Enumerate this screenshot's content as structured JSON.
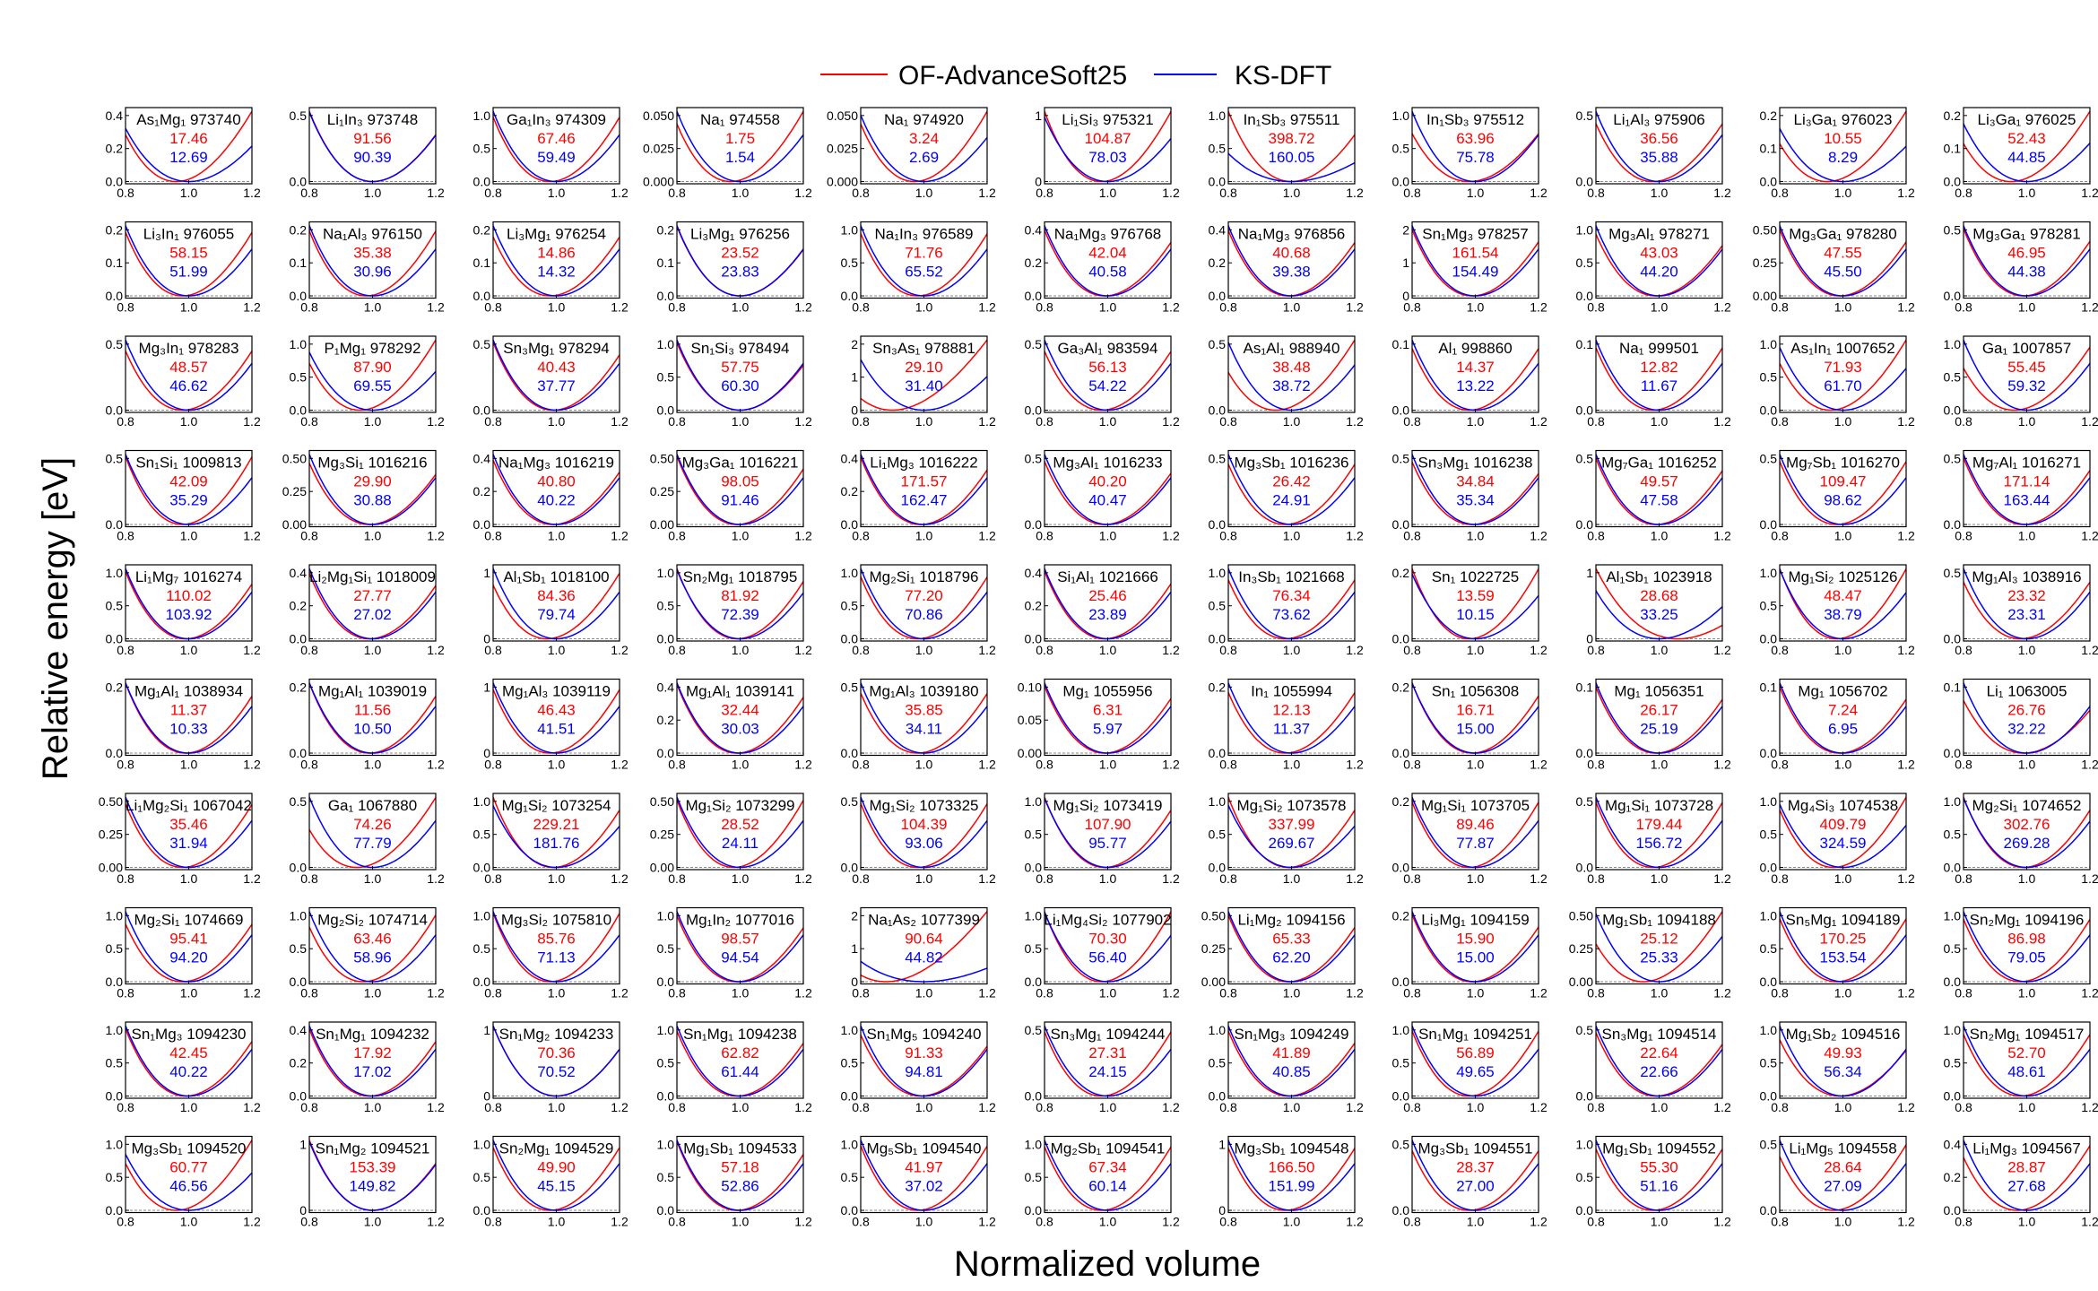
{
  "chart_data": {
    "type": "line",
    "layout": "grid 10 rows x 11 columns of small multiples",
    "xlabel": "Normalized volume",
    "ylabel": "Relative energy [eV]",
    "xlim": [
      0.8,
      1.2
    ],
    "xticks": [
      "0.8",
      "1.0",
      "1.2"
    ],
    "legend": {
      "placement": "top-center",
      "entries": [
        {
          "name": "OF-AdvanceSoft25",
          "color": "#ff0000"
        },
        {
          "name": "KS-DFT",
          "color": "#0000ff"
        }
      ]
    },
    "panel_fields": [
      "title",
      "OF-AdvanceSoft25 value",
      "KS-DFT value",
      "y tick labels",
      "OF min volume (optional)",
      "KS min volume (optional)"
    ],
    "panels": [
      [
        "As₁Mg₁ 973740",
        "17.46",
        "12.69",
        [
          "0.0",
          "0.2",
          "0.4"
        ],
        0.96
      ],
      [
        "Li₁In₃ 973748",
        "91.56",
        "90.39",
        [
          "0.0",
          "0.5"
        ],
        1.0
      ],
      [
        "Ga₁In₃ 974309",
        "67.46",
        "59.49",
        [
          "0.0",
          "0.5",
          "1.0"
        ]
      ],
      [
        "Na₁ 974558",
        "1.75",
        "1.54",
        [
          "0.000",
          "0.025",
          "0.050"
        ],
        0.97
      ],
      [
        "Na₁ 974920",
        "3.24",
        "2.69",
        [
          "0.000",
          "0.025",
          "0.050"
        ],
        0.97
      ],
      [
        "Li₁Si₃ 975321",
        "104.87",
        "78.03",
        [
          "0",
          "1"
        ]
      ],
      [
        "In₁Sb₃ 975511",
        "398.72",
        "160.05",
        [
          "0.0",
          "0.5",
          "1.0"
        ],
        1.0
      ],
      [
        "In₁Sb₃ 975512",
        "63.96",
        "75.78",
        [
          "0.0",
          "0.5",
          "1.0"
        ]
      ],
      [
        "Li₁Al₃ 975906",
        "36.56",
        "35.88",
        [
          "0.0",
          "0.5"
        ]
      ],
      [
        "Li₃Ga₁ 976023",
        "10.55",
        "8.29",
        [
          "0.0",
          "0.1",
          "0.2"
        ],
        0.95
      ],
      [
        "Li₃Ga₁ 976025",
        "52.43",
        "44.85",
        [
          "0.0",
          "0.1",
          "0.2"
        ],
        0.95
      ],
      [
        "Li₃In₁ 976055",
        "58.15",
        "51.99",
        [
          "0.0",
          "0.1",
          "0.2"
        ]
      ],
      [
        "Na₁Al₃ 976150",
        "35.38",
        "30.96",
        [
          "0.0",
          "0.1",
          "0.2"
        ]
      ],
      [
        "Li₃Mg₁ 976254",
        "14.86",
        "14.32",
        [
          "0.0",
          "0.1",
          "0.2"
        ]
      ],
      [
        "Li₃Mg₁ 976256",
        "23.52",
        "23.83",
        [
          "0.0",
          "0.1",
          "0.2"
        ],
        1.0
      ],
      [
        "Na₁In₃ 976589",
        "71.76",
        "65.52",
        [
          "0.0",
          "0.5",
          "1.0"
        ]
      ],
      [
        "Na₁Mg₃ 976768",
        "42.04",
        "40.58",
        [
          "0.0",
          "0.2",
          "0.4"
        ],
        0.99
      ],
      [
        "Na₁Mg₃ 976856",
        "40.68",
        "39.38",
        [
          "0.0",
          "0.2",
          "0.4"
        ],
        0.99
      ],
      [
        "Sn₁Mg₃ 978257",
        "161.54",
        "154.49",
        [
          "0",
          "1",
          "2"
        ],
        0.99
      ],
      [
        "Mg₃Al₁ 978271",
        "43.03",
        "44.20",
        [
          "0.0",
          "0.5",
          "1.0"
        ],
        0.99
      ],
      [
        "Mg₃Ga₁ 978280",
        "47.55",
        "45.50",
        [
          "0.00",
          "0.25",
          "0.50"
        ],
        0.99
      ],
      [
        "Mg₃Ga₁ 978281",
        "46.95",
        "44.38",
        [
          "0.0",
          "0.5"
        ],
        0.99
      ],
      [
        "Mg₃In₁ 978283",
        "48.57",
        "46.62",
        [
          "0.0",
          "0.5"
        ]
      ],
      [
        "P₁Mg₁ 978292",
        "87.90",
        "69.55",
        [
          "0.0",
          "0.5",
          "1.0"
        ],
        0.96
      ],
      [
        "Sn₃Mg₁ 978294",
        "40.43",
        "37.77",
        [
          "0.0",
          "0.5"
        ],
        0.99
      ],
      [
        "Sn₁Si₃ 978494",
        "57.75",
        "60.30",
        [
          "0.0",
          "0.5",
          "1.0"
        ],
        1.0
      ],
      [
        "Sn₃As₁ 978881",
        "29.10",
        "31.40",
        [
          "0",
          "1",
          "2"
        ],
        0.9,
        1.0
      ],
      [
        "Ga₃Al₁ 983594",
        "56.13",
        "54.22",
        [
          "0.0",
          "0.5"
        ]
      ],
      [
        "As₁Al₁ 988940",
        "38.48",
        "38.72",
        [
          "0.0",
          "0.5"
        ],
        0.95
      ],
      [
        "Al₁ 998860",
        "14.37",
        "13.22",
        [
          "0.0",
          "0.1"
        ]
      ],
      [
        "Na₁ 999501",
        "12.82",
        "11.67",
        [
          "0.0",
          "0.1"
        ]
      ],
      [
        "As₁In₁ 1007652",
        "71.93",
        "61.70",
        [
          "0.0",
          "0.5",
          "1.0"
        ],
        0.96
      ],
      [
        "Ga₁ 1007857",
        "55.45",
        "59.32",
        [
          "0.0",
          "0.5",
          "1.0"
        ],
        0.96
      ],
      [
        "Sn₁Si₁ 1009813",
        "42.09",
        "35.29",
        [
          "0.0",
          "0.5"
        ]
      ],
      [
        "Mg₃Si₁ 1016216",
        "29.90",
        "30.88",
        [
          "0.00",
          "0.25",
          "0.50"
        ],
        0.99
      ],
      [
        "Na₁Mg₃ 1016219",
        "40.80",
        "40.22",
        [
          "0.0",
          "0.2",
          "0.4"
        ],
        0.99
      ],
      [
        "Mg₃Ga₁ 1016221",
        "98.05",
        "91.46",
        [
          "0.00",
          "0.25",
          "0.50"
        ],
        0.99
      ],
      [
        "Li₁Mg₃ 1016222",
        "171.57",
        "162.47",
        [
          "0.0",
          "0.2",
          "0.4"
        ],
        0.99
      ],
      [
        "Mg₃Al₁ 1016233",
        "40.20",
        "40.47",
        [
          "0.0",
          "0.5"
        ],
        0.99
      ],
      [
        "Mg₃Sb₁ 1016236",
        "26.42",
        "24.91",
        [
          "0.0",
          "0.5"
        ]
      ],
      [
        "Sn₃Mg₁ 1016238",
        "34.84",
        "35.34",
        [
          "0.0",
          "0.5"
        ],
        0.99
      ],
      [
        "Mg₇Ga₁ 1016252",
        "49.57",
        "47.58",
        [
          "0.0",
          "0.5"
        ],
        0.99
      ],
      [
        "Mg₇Sb₁ 1016270",
        "109.47",
        "98.62",
        [
          "0.0",
          "0.5"
        ]
      ],
      [
        "Mg₇Al₁ 1016271",
        "171.14",
        "163.44",
        [
          "0.0",
          "0.5"
        ],
        0.99
      ],
      [
        "Li₁Mg₇ 1016274",
        "110.02",
        "103.92",
        [
          "0.0",
          "0.5",
          "1.0"
        ],
        0.99
      ],
      [
        "Li₂Mg₁Si₁ 1018009",
        "27.77",
        "27.02",
        [
          "0.0",
          "0.2",
          "0.4"
        ],
        0.99
      ],
      [
        "Al₁Sb₁ 1018100",
        "84.36",
        "79.74",
        [
          "0",
          "1"
        ],
        0.97
      ],
      [
        "Sn₂Mg₁ 1018795",
        "81.92",
        "72.39",
        [
          "0.0",
          "0.5",
          "1.0"
        ],
        0.99
      ],
      [
        "Mg₂Si₁ 1018796",
        "77.20",
        "70.86",
        [
          "0.0",
          "0.5",
          "1.0"
        ]
      ],
      [
        "Si₁Al₁ 1021666",
        "25.46",
        "23.89",
        [
          "0.0",
          "0.2",
          "0.4"
        ],
        0.99
      ],
      [
        "In₃Sb₁ 1021668",
        "76.34",
        "73.62",
        [
          "0.0",
          "0.5",
          "1.0"
        ]
      ],
      [
        "Sn₁ 1022725",
        "13.59",
        "10.15",
        [
          "0.0",
          "0.2"
        ]
      ],
      [
        "Al₁Sb₁ 1023918",
        "28.68",
        "33.25",
        [
          "0",
          "1"
        ],
        1.06,
        1.0
      ],
      [
        "Mg₁Si₂ 1025126",
        "48.47",
        "38.79",
        [
          "0.0",
          "0.5",
          "1.0"
        ]
      ],
      [
        "Mg₁Al₃ 1038916",
        "23.32",
        "23.31",
        [
          "0.0",
          "0.5"
        ]
      ],
      [
        "Mg₁Al₁ 1038934",
        "11.37",
        "10.33",
        [
          "0.0",
          "0.2"
        ],
        0.99
      ],
      [
        "Mg₁Al₁ 1039019",
        "11.56",
        "10.50",
        [
          "0.0",
          "0.2"
        ],
        0.99
      ],
      [
        "Mg₁Al₃ 1039119",
        "46.43",
        "41.51",
        [
          "0",
          "1"
        ]
      ],
      [
        "Mg₁Al₁ 1039141",
        "32.44",
        "30.03",
        [
          "0.0",
          "0.2",
          "0.4"
        ],
        0.99
      ],
      [
        "Mg₁Al₃ 1039180",
        "35.85",
        "34.11",
        [
          "0.0",
          "0.5"
        ]
      ],
      [
        "Mg₁ 1055956",
        "6.31",
        "5.97",
        [
          "0.00",
          "0.05",
          "0.10"
        ],
        0.99
      ],
      [
        "In₁ 1055994",
        "12.13",
        "11.37",
        [
          "0.0",
          "0.2"
        ]
      ],
      [
        "Sn₁ 1056308",
        "16.71",
        "15.00",
        [
          "0.0",
          "0.2"
        ],
        0.99
      ],
      [
        "Mg₁ 1056351",
        "26.17",
        "25.19",
        [
          "0.0",
          "0.1"
        ],
        0.99
      ],
      [
        "Mg₁ 1056702",
        "7.24",
        "6.95",
        [
          "0.0",
          "0.1"
        ],
        0.99
      ],
      [
        "Li₁ 1063005",
        "26.76",
        "32.22",
        [
          "0.0",
          "0.1"
        ],
        0.99
      ],
      [
        "Li₁Mg₂Si₁ 1067042",
        "35.46",
        "31.94",
        [
          "0.00",
          "0.25",
          "0.50"
        ]
      ],
      [
        "Ga₁ 1067880",
        "74.26",
        "77.79",
        [
          "0.0",
          "0.5"
        ],
        0.95
      ],
      [
        "Mg₁Si₂ 1073254",
        "229.21",
        "181.76",
        [
          "0.0",
          "0.5",
          "1.0"
        ],
        0.99
      ],
      [
        "Mg₁Si₂ 1073299",
        "28.52",
        "24.11",
        [
          "0.00",
          "0.25",
          "0.50"
        ]
      ],
      [
        "Mg₁Si₂ 1073325",
        "104.39",
        "93.06",
        [
          "0.0",
          "0.5"
        ]
      ],
      [
        "Mg₁Si₂ 1073419",
        "107.90",
        "95.77",
        [
          "0.0",
          "0.5",
          "1.0"
        ],
        0.99
      ],
      [
        "Mg₁Si₂ 1073578",
        "337.99",
        "269.67",
        [
          "0.0",
          "0.5",
          "1.0"
        ],
        0.99
      ],
      [
        "Mg₁Si₁ 1073705",
        "89.46",
        "77.87",
        [
          "0.0",
          "0.2"
        ]
      ],
      [
        "Mg₁Si₁ 1073728",
        "179.44",
        "156.72",
        [
          "0.0",
          "0.5"
        ]
      ],
      [
        "Mg₄Si₃ 1074538",
        "409.79",
        "324.59",
        [
          "0.0",
          "0.5",
          "1.0"
        ],
        0.97
      ],
      [
        "Mg₂Si₁ 1074652",
        "302.76",
        "269.28",
        [
          "0.0",
          "0.5",
          "1.0"
        ],
        0.99
      ],
      [
        "Mg₂Si₁ 1074669",
        "95.41",
        "94.20",
        [
          "0.0",
          "0.5",
          "1.0"
        ]
      ],
      [
        "Mg₂Si₂ 1074714",
        "63.46",
        "58.96",
        [
          "0.0",
          "0.5",
          "1.0"
        ],
        0.97
      ],
      [
        "Mg₃Si₂ 1075810",
        "85.76",
        "71.13",
        [
          "0.0",
          "0.5",
          "1.0"
        ]
      ],
      [
        "Mg₁In₂ 1077016",
        "98.57",
        "94.54",
        [
          "0.0",
          "0.5",
          "1.0"
        ],
        0.99
      ],
      [
        "Na₁As₂ 1077399",
        "90.64",
        "44.82",
        [
          "0",
          "1",
          "2"
        ],
        0.88,
        1.0
      ],
      [
        "Li₁Mg₄Si₂ 1077902",
        "70.30",
        "56.40",
        [
          "0.0",
          "0.5",
          "1.0"
        ]
      ],
      [
        "Li₁Mg₂ 1094156",
        "65.33",
        "62.20",
        [
          "0.00",
          "0.25",
          "0.50"
        ],
        0.99
      ],
      [
        "Li₃Mg₁ 1094159",
        "15.90",
        "15.00",
        [
          "0.0",
          "0.2"
        ],
        0.99
      ],
      [
        "Mg₁Sb₁ 1094188",
        "25.12",
        "25.33",
        [
          "0.00",
          "0.25",
          "0.50"
        ],
        0.95
      ],
      [
        "Sn₅Mg₁ 1094189",
        "170.25",
        "153.54",
        [
          "0.0",
          "0.5",
          "1.0"
        ]
      ],
      [
        "Sn₂Mg₁ 1094196",
        "86.98",
        "79.05",
        [
          "0.0",
          "0.5",
          "1.0"
        ]
      ],
      [
        "Sn₁Mg₃ 1094230",
        "42.45",
        "40.22",
        [
          "0.0",
          "0.5",
          "1.0"
        ],
        0.99
      ],
      [
        "Sn₁Mg₁ 1094232",
        "17.92",
        "17.02",
        [
          "0.0",
          "0.2",
          "0.4"
        ],
        0.99
      ],
      [
        "Sn₁Mg₂ 1094233",
        "70.36",
        "70.52",
        [
          "0",
          "1"
        ],
        1.0
      ],
      [
        "Sn₁Mg₁ 1094238",
        "62.82",
        "61.44",
        [
          "0.0",
          "0.5",
          "1.0"
        ],
        0.99
      ],
      [
        "Sn₁Mg₅ 1094240",
        "91.33",
        "94.81",
        [
          "0.0",
          "0.5",
          "1.0"
        ],
        0.99
      ],
      [
        "Sn₃Mg₁ 1094244",
        "27.31",
        "24.15",
        [
          "0.0",
          "0.5"
        ]
      ],
      [
        "Sn₁Mg₃ 1094249",
        "41.89",
        "40.85",
        [
          "0.0",
          "0.5",
          "1.0"
        ],
        0.99
      ],
      [
        "Sn₁Mg₁ 1094251",
        "56.89",
        "49.65",
        [
          "0.0",
          "0.5",
          "1.0"
        ]
      ],
      [
        "Sn₃Mg₁ 1094514",
        "22.64",
        "22.66",
        [
          "0.0",
          "0.5"
        ],
        0.99
      ],
      [
        "Mg₁Sb₂ 1094516",
        "49.93",
        "56.34",
        [
          "0.0",
          "0.5",
          "1.0"
        ],
        0.99
      ],
      [
        "Sn₂Mg₁ 1094517",
        "52.70",
        "48.61",
        [
          "0.0",
          "0.5",
          "1.0"
        ]
      ],
      [
        "Mg₃Sb₁ 1094520",
        "60.77",
        "46.56",
        [
          "0.0",
          "0.5",
          "1.0"
        ],
        0.96
      ],
      [
        "Sn₁Mg₂ 1094521",
        "153.39",
        "149.82",
        [
          "0",
          "1"
        ],
        1.0
      ],
      [
        "Sn₂Mg₁ 1094529",
        "49.90",
        "45.15",
        [
          "0.0",
          "0.5",
          "1.0"
        ]
      ],
      [
        "Mg₁Sb₁ 1094533",
        "57.18",
        "52.86",
        [
          "0.0",
          "0.5",
          "1.0"
        ],
        0.99
      ],
      [
        "Mg₅Sb₁ 1094540",
        "41.97",
        "37.02",
        [
          "0.0",
          "0.5",
          "1.0"
        ]
      ],
      [
        "Mg₂Sb₁ 1094541",
        "67.34",
        "60.14",
        [
          "0.0",
          "0.5",
          "1.0"
        ]
      ],
      [
        "Mg₃Sb₁ 1094548",
        "166.50",
        "151.99",
        [
          "0",
          "1"
        ]
      ],
      [
        "Mg₃Sb₁ 1094551",
        "28.37",
        "27.00",
        [
          "0.0",
          "0.5"
        ]
      ],
      [
        "Mg₁Sb₁ 1094552",
        "55.30",
        "51.16",
        [
          "0.0",
          "0.5",
          "1.0"
        ]
      ],
      [
        "Li₁Mg₅ 1094558",
        "28.64",
        "27.09",
        [
          "0.0",
          "0.5"
        ],
        0.97
      ],
      [
        "Li₁Mg₃ 1094567",
        "28.87",
        "27.68",
        [
          "0.0",
          "0.2",
          "0.4"
        ],
        0.97
      ]
    ]
  }
}
